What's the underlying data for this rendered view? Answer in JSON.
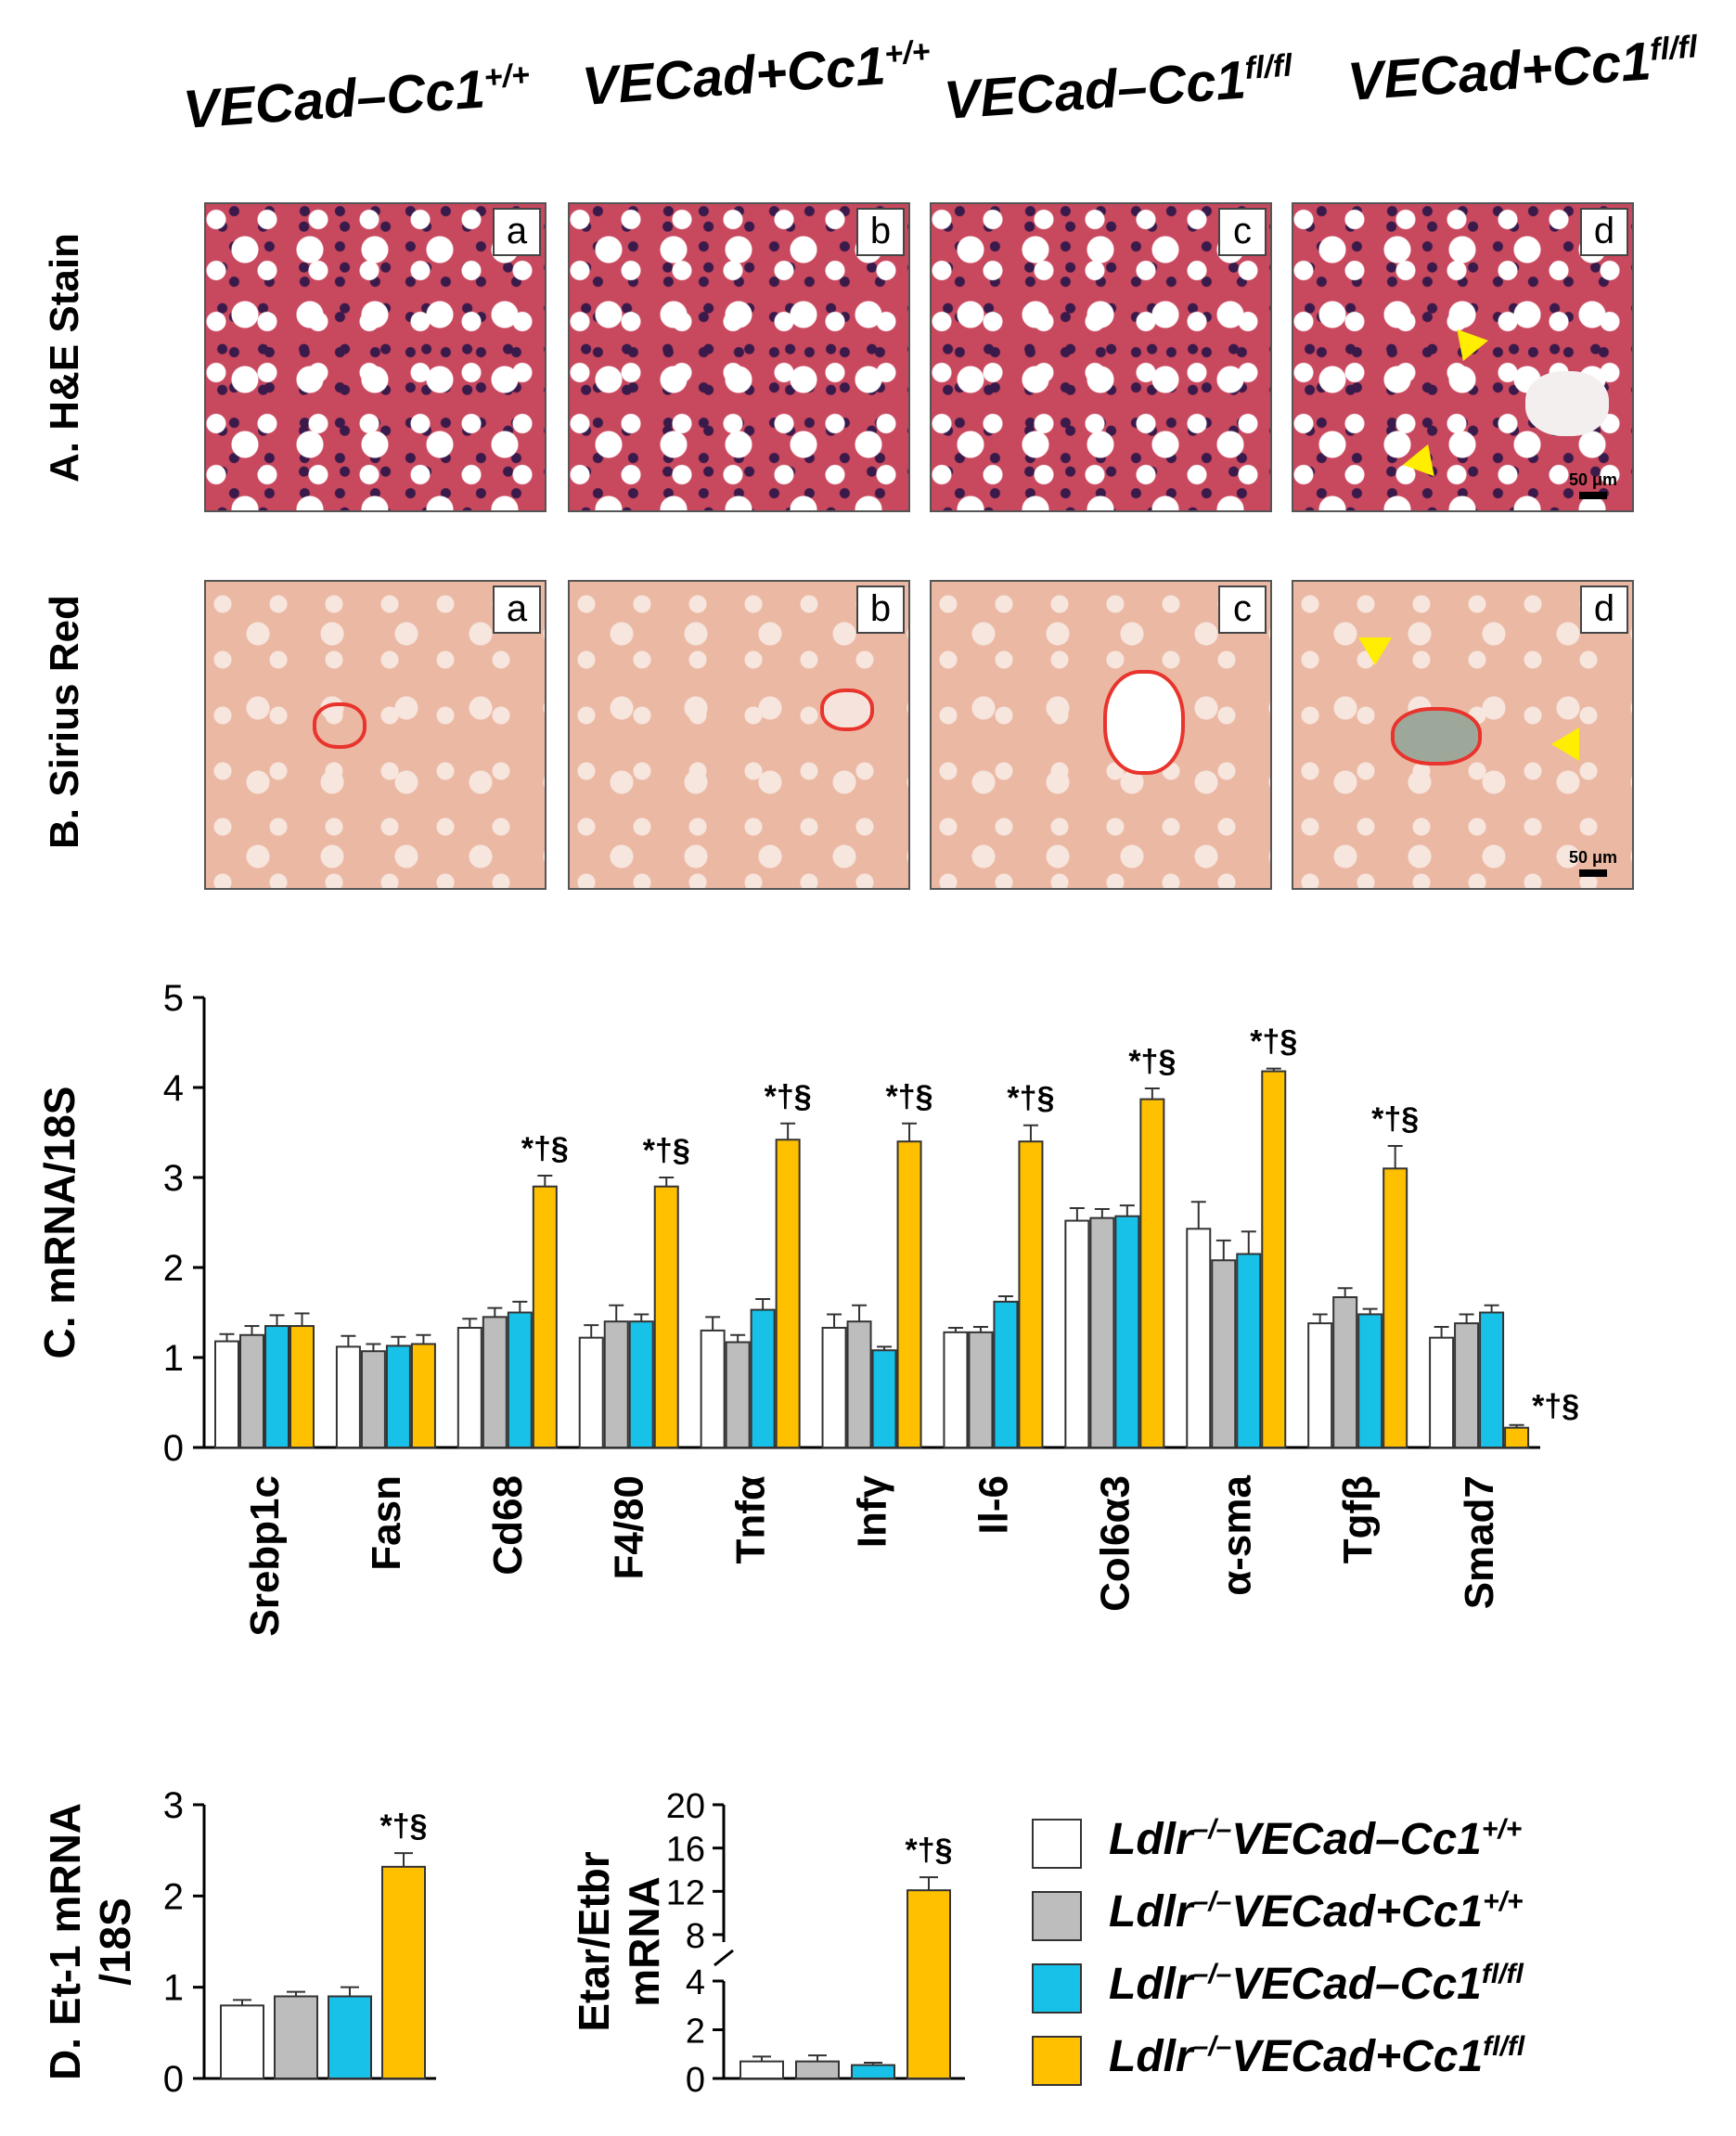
{
  "columns": [
    {
      "prefix": "VECad–Cc1",
      "sup": "+/+"
    },
    {
      "prefix": "VECad+Cc1",
      "sup": "+/+"
    },
    {
      "prefix": "VECad–Cc1",
      "sup": "fl/fl"
    },
    {
      "prefix": "VECad+Cc1",
      "sup": "fl/fl"
    }
  ],
  "rows": {
    "he": "A. H&E Stain",
    "sirius": "B. Sirius Red"
  },
  "panel_tags": [
    "a",
    "b",
    "c",
    "d"
  ],
  "scale_bar": "50 μm",
  "colors": {
    "group1": "#ffffff",
    "group2": "#bdbdbd",
    "group3": "#17c1e8",
    "group4": "#ffc000"
  },
  "chart_data": [
    {
      "type": "bar",
      "ylabel": "C. mRNA/18S",
      "ylim": [
        0,
        5
      ],
      "yticks": [
        "0",
        "1",
        "2",
        "3",
        "4",
        "5"
      ],
      "categories": [
        "Srebp1c",
        "Fasn",
        "Cd68",
        "F4/80",
        "Tnfα",
        "Infγ",
        "Il-6",
        "Col6α3",
        "α-sma",
        "Tgfβ",
        "Smad7"
      ],
      "series": [
        {
          "name": "Ldlr–/–VECad–Cc1+/+",
          "values": [
            1.18,
            1.12,
            1.33,
            1.22,
            1.3,
            1.33,
            1.28,
            2.52,
            2.43,
            1.38,
            1.22
          ],
          "errors": [
            0.08,
            0.12,
            0.1,
            0.14,
            0.15,
            0.15,
            0.05,
            0.14,
            0.3,
            0.1,
            0.12
          ]
        },
        {
          "name": "Ldlr–/–VECad+Cc1+/+",
          "values": [
            1.25,
            1.07,
            1.45,
            1.4,
            1.17,
            1.4,
            1.28,
            2.55,
            2.08,
            1.67,
            1.38
          ],
          "errors": [
            0.1,
            0.08,
            0.1,
            0.18,
            0.08,
            0.18,
            0.06,
            0.1,
            0.22,
            0.1,
            0.1
          ]
        },
        {
          "name": "Ldlr–/–VECad–Cc1fl/fl",
          "values": [
            1.35,
            1.13,
            1.5,
            1.4,
            1.53,
            1.08,
            1.62,
            2.57,
            2.15,
            1.48,
            1.5
          ],
          "errors": [
            0.12,
            0.1,
            0.12,
            0.08,
            0.12,
            0.04,
            0.06,
            0.12,
            0.25,
            0.06,
            0.08
          ]
        },
        {
          "name": "Ldlr–/–VECad+Cc1fl/fl",
          "values": [
            1.35,
            1.15,
            2.9,
            2.9,
            3.42,
            3.4,
            3.4,
            3.87,
            4.18,
            3.1,
            0.22
          ],
          "errors": [
            0.14,
            0.1,
            0.12,
            0.1,
            0.18,
            0.2,
            0.18,
            0.12,
            0.03,
            0.25,
            0.03
          ]
        }
      ],
      "annotations": [
        "",
        "",
        "*†§",
        "*†§",
        "*†§",
        "*†§",
        "*†§",
        "*†§",
        "*†§",
        "*†§",
        "*†§"
      ]
    },
    {
      "type": "bar",
      "ylabel": "D. Et-1 mRNA /18S",
      "ylim": [
        0,
        3
      ],
      "yticks": [
        "0",
        "1",
        "2",
        "3"
      ],
      "series": [
        {
          "name": "Ldlr–/–VECad–Cc1+/+",
          "values": [
            0.8
          ],
          "errors": [
            0.06
          ]
        },
        {
          "name": "Ldlr–/–VECad+Cc1+/+",
          "values": [
            0.9
          ],
          "errors": [
            0.05
          ]
        },
        {
          "name": "Ldlr–/–VECad–Cc1fl/fl",
          "values": [
            0.9
          ],
          "errors": [
            0.1
          ]
        },
        {
          "name": "Ldlr–/–VECad+Cc1fl/fl",
          "values": [
            2.32
          ],
          "errors": [
            0.15
          ]
        }
      ],
      "annotation": "*†§"
    },
    {
      "type": "bar",
      "ylabel": "Etar/Etbr mRNA",
      "yticks": [
        "0",
        "2",
        "4",
        "8",
        "12",
        "16",
        "20"
      ],
      "axis_break": [
        4,
        8
      ],
      "series": [
        {
          "name": "Ldlr–/–VECad–Cc1+/+",
          "values": [
            0.7
          ],
          "errors": [
            0.2
          ]
        },
        {
          "name": "Ldlr–/–VECad+Cc1+/+",
          "values": [
            0.7
          ],
          "errors": [
            0.25
          ]
        },
        {
          "name": "Ldlr–/–VECad–Cc1fl/fl",
          "values": [
            0.55
          ],
          "errors": [
            0.1
          ]
        },
        {
          "name": "Ldlr–/–VECad+Cc1fl/fl",
          "values": [
            12.1
          ],
          "errors": [
            1.2
          ]
        }
      ],
      "annotation": "*†§"
    }
  ],
  "legend": [
    {
      "prefix": "Ldlr",
      "sup1": "–/–",
      "mid": "VECad–Cc1",
      "sup2": "+/+"
    },
    {
      "prefix": "Ldlr",
      "sup1": "–/–",
      "mid": "VECad+Cc1",
      "sup2": "+/+"
    },
    {
      "prefix": "Ldlr",
      "sup1": "–/–",
      "mid": "VECad–Cc1",
      "sup2": "fl/fl"
    },
    {
      "prefix": "Ldlr",
      "sup1": "–/–",
      "mid": "VECad+Cc1",
      "sup2": "fl/fl"
    }
  ]
}
